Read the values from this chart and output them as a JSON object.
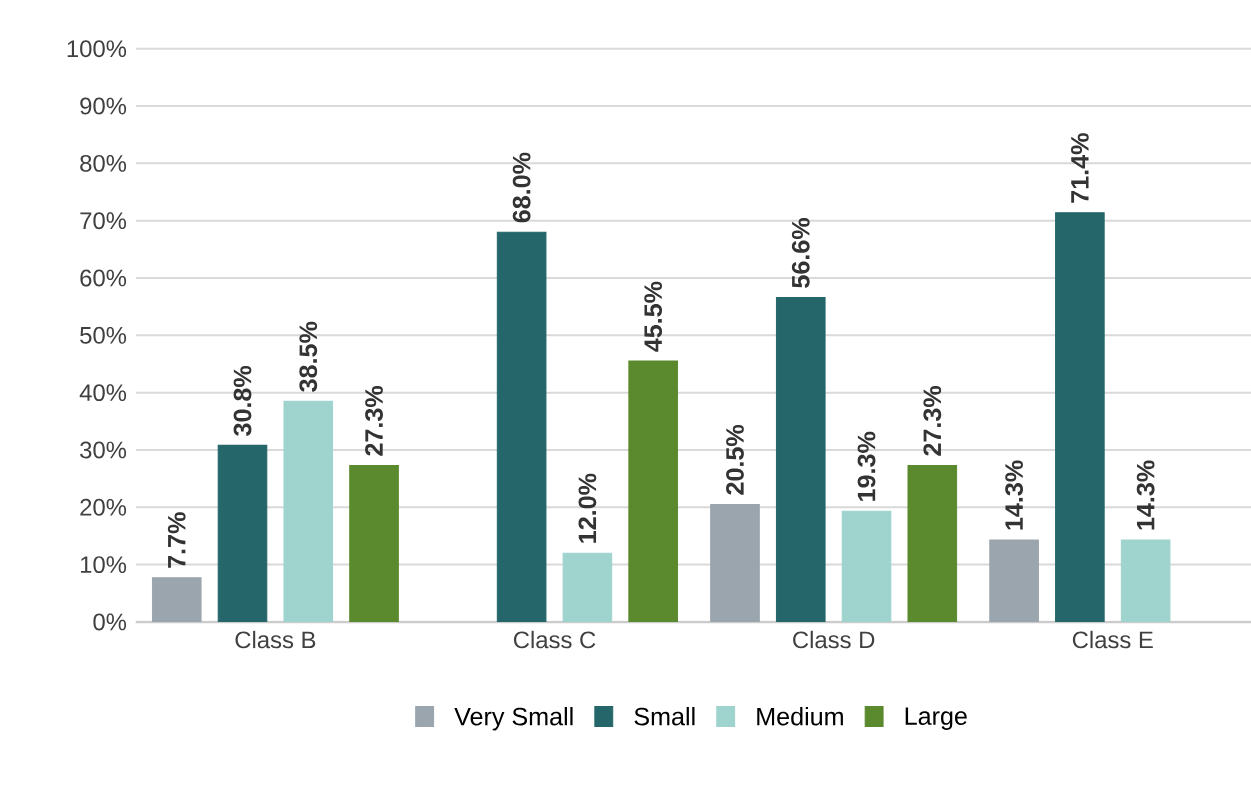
{
  "chart_data": {
    "type": "bar",
    "categories": [
      "Class B",
      "Class C",
      "Class D",
      "Class E"
    ],
    "series": [
      {
        "name": "Very Small",
        "color": "#9aa5ad",
        "values": [
          7.7,
          null,
          20.5,
          14.3
        ],
        "value_labels": [
          "7.7%",
          null,
          "20.5%",
          "14.3%"
        ]
      },
      {
        "name": "Small",
        "color": "#246669",
        "values": [
          30.8,
          68.0,
          56.6,
          71.4
        ],
        "value_labels": [
          "30.8%",
          "68.0%",
          "56.6%",
          "71.4%"
        ]
      },
      {
        "name": "Medium",
        "color": "#9fd4ce",
        "values": [
          38.5,
          12.0,
          19.3,
          14.3
        ],
        "value_labels": [
          "38.5%",
          "12.0%",
          "19.3%",
          "14.3%"
        ]
      },
      {
        "name": "Large",
        "color": "#5b8a2e",
        "values": [
          27.3,
          45.5,
          27.3,
          null
        ],
        "value_labels": [
          "27.3%",
          "45.5%",
          "27.3%",
          null
        ]
      }
    ],
    "ylim": [
      0,
      100
    ],
    "yticks": [
      {
        "value": 0,
        "label": "0%"
      },
      {
        "value": 10,
        "label": "10%"
      },
      {
        "value": 20,
        "label": "20%"
      },
      {
        "value": 30,
        "label": "30%"
      },
      {
        "value": 40,
        "label": "40%"
      },
      {
        "value": 50,
        "label": "50%"
      },
      {
        "value": 60,
        "label": "60%"
      },
      {
        "value": 70,
        "label": "70%"
      },
      {
        "value": 80,
        "label": "80%"
      },
      {
        "value": 90,
        "label": "90%"
      },
      {
        "value": 100,
        "label": "100%"
      }
    ],
    "grid": "y",
    "legend": "bottom"
  }
}
